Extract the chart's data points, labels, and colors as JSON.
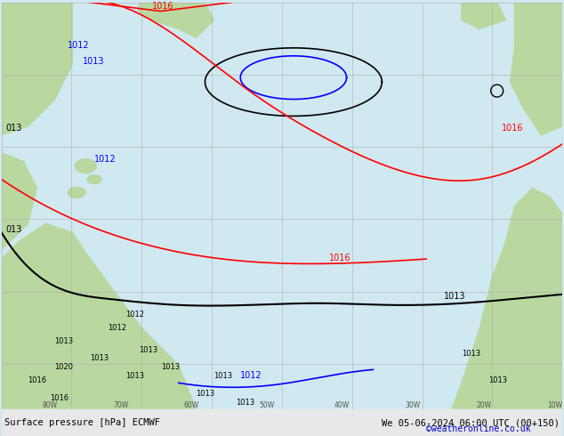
{
  "title_left": "Surface pressure [hPa] ECMWF",
  "title_right": "We 05-06-2024 06:00 UTC (00+150)",
  "copyright": "©weatheronline.co.uk",
  "bg_color": "#d0e8f0",
  "land_color": "#b8d8a0",
  "grid_color": "#aaaaaa",
  "bottom_bar_color": "#e8e8e8",
  "bottom_text_color": "#000000",
  "copyright_color": "#0000cc",
  "figsize": [
    6.34,
    4.9
  ],
  "dpi": 100
}
